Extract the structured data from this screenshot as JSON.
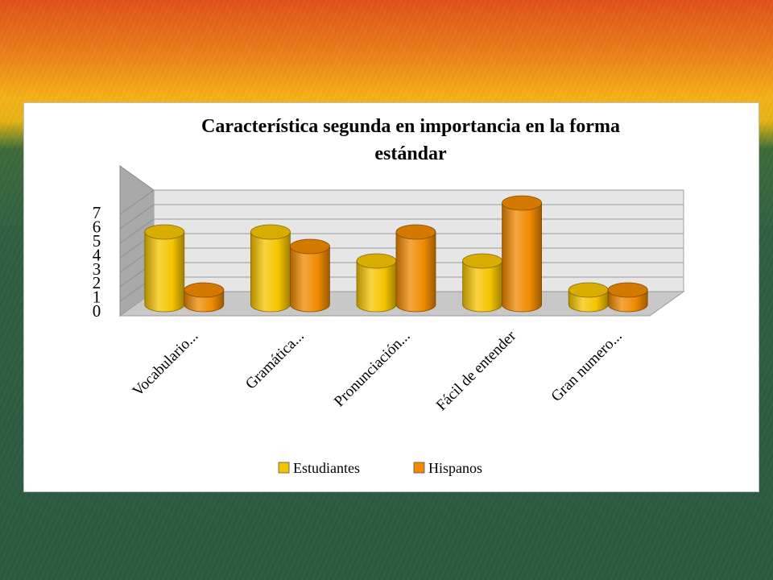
{
  "chart_data": {
    "type": "bar",
    "title": "Característica segunda en importancia en la forma estándar",
    "title_lines": [
      "Característica segunda en importancia en la forma",
      "estándar"
    ],
    "categories": [
      "Vocabulario...",
      "Gramática...",
      "Pronunciación...",
      "Fácil de entender",
      "Gran numero..."
    ],
    "series": [
      {
        "name": "Estudiantes",
        "values": [
          5,
          5,
          3,
          3,
          1
        ],
        "color": "#f5c400"
      },
      {
        "name": "Hispanos",
        "values": [
          1,
          4,
          5,
          7,
          1
        ],
        "color": "#f08a00"
      }
    ],
    "ylim": [
      0,
      7
    ],
    "yticks": [
      0,
      1,
      2,
      3,
      4,
      5,
      6,
      7
    ],
    "grid": true,
    "legend": "bottom"
  },
  "colors": {
    "floor": "#c8c8c8",
    "wall": "#e6e6e6",
    "gridline": "#9a9a9a"
  }
}
